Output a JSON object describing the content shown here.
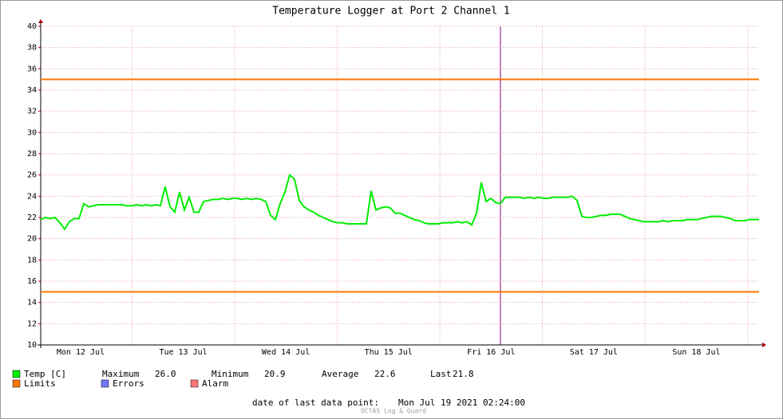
{
  "chart_data": {
    "type": "line",
    "title": "Temperature Logger at Port 2 Channel 1",
    "x_labels": [
      "Mon 12 Jul",
      "Tue 13 Jul",
      "Wed 14 Jul",
      "Thu 15 Jul",
      "Fri 16 Jul",
      "Sat 17 Jul",
      "Sun 18 Jul"
    ],
    "ylim": [
      10,
      40
    ],
    "yticks": [
      10,
      12,
      14,
      16,
      18,
      20,
      22,
      24,
      26,
      28,
      30,
      32,
      34,
      36,
      38,
      40
    ],
    "grid": true,
    "series": [
      {
        "name": "Temp [C]",
        "color": "#00ee00",
        "values": [
          21.8,
          22.0,
          21.9,
          22.0,
          21.5,
          20.9,
          21.6,
          21.9,
          21.9,
          23.3,
          23.0,
          23.1,
          23.2,
          23.2,
          23.2,
          23.2,
          23.2,
          23.2,
          23.1,
          23.1,
          23.2,
          23.1,
          23.2,
          23.1,
          23.2,
          23.1,
          24.9,
          23.0,
          22.5,
          24.4,
          22.7,
          23.9,
          22.5,
          22.5,
          23.5,
          23.6,
          23.7,
          23.7,
          23.8,
          23.7,
          23.8,
          23.8,
          23.7,
          23.8,
          23.7,
          23.8,
          23.7,
          23.5,
          22.2,
          21.8,
          23.3,
          24.4,
          26.0,
          25.6,
          23.6,
          23.0,
          22.7,
          22.5,
          22.2,
          22.0,
          21.8,
          21.6,
          21.5,
          21.5,
          21.4,
          21.4,
          21.4,
          21.4,
          21.4,
          24.5,
          22.7,
          22.9,
          23.0,
          22.9,
          22.4,
          22.4,
          22.2,
          22.0,
          21.8,
          21.7,
          21.5,
          21.4,
          21.4,
          21.4,
          21.5,
          21.5,
          21.5,
          21.6,
          21.5,
          21.6,
          21.3,
          22.4,
          25.3,
          23.5,
          23.8,
          23.4,
          23.3,
          23.9,
          23.9,
          23.9,
          23.9,
          23.8,
          23.9,
          23.8,
          23.9,
          23.8,
          23.8,
          23.9,
          23.9,
          23.9,
          23.9,
          24.0,
          23.6,
          22.1,
          22.0,
          22.0,
          22.1,
          22.2,
          22.2,
          22.3,
          22.3,
          22.3,
          22.1,
          21.9,
          21.8,
          21.7,
          21.6,
          21.6,
          21.6,
          21.6,
          21.7,
          21.6,
          21.7,
          21.7,
          21.7,
          21.8,
          21.8,
          21.8,
          21.9,
          22.0,
          22.1,
          22.1,
          22.1,
          22.0,
          21.9,
          21.7,
          21.7,
          21.7,
          21.8,
          21.8,
          21.8
        ]
      }
    ],
    "limits": {
      "name": "Limits",
      "color": "#ff7700",
      "values": [
        35,
        15
      ]
    },
    "legend_extra": [
      {
        "name": "Errors",
        "color": "#7777ff"
      },
      {
        "name": "Alarm",
        "color": "#ff7777"
      }
    ],
    "stats": [
      {
        "name": "Maximum",
        "value": 26,
        "label": "26.0"
      },
      {
        "name": "Minimum",
        "value": 20.9,
        "label": "20.9"
      },
      {
        "name": "Average",
        "value": 22.6,
        "label": "22.6"
      },
      {
        "name": "Last",
        "value": 21.8,
        "label": "21.8"
      }
    ],
    "footer_label": "date of last data point:",
    "footer_date": "Mon Jul 19 2021 02:24:00",
    "watermark": "OCTAS Log & Guard"
  }
}
